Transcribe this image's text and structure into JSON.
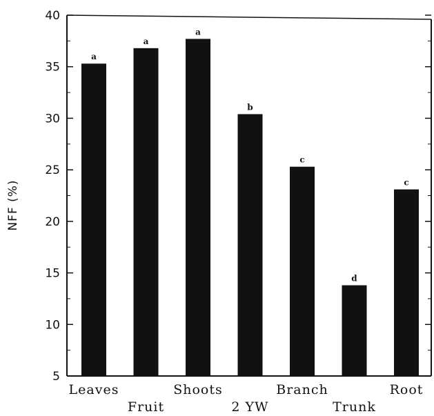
{
  "chart_data": {
    "type": "bar",
    "title": "",
    "xlabel": "",
    "ylabel": "NFF (%)",
    "ylim": [
      5,
      40
    ],
    "yticks": [
      5,
      10,
      15,
      20,
      25,
      30,
      35,
      40
    ],
    "categories": [
      "Leaves",
      "Fruit",
      "Shoots",
      "2 YW",
      "Branch",
      "Trunk",
      "Root"
    ],
    "values": [
      35.3,
      36.8,
      37.7,
      30.4,
      25.3,
      13.8,
      23.1
    ],
    "significance_letters": [
      "a",
      "a",
      "a",
      "b",
      "c",
      "d",
      "c"
    ],
    "grid": false,
    "legend": "none",
    "colors": {
      "bar": "#111111",
      "axis": "#111111"
    }
  }
}
